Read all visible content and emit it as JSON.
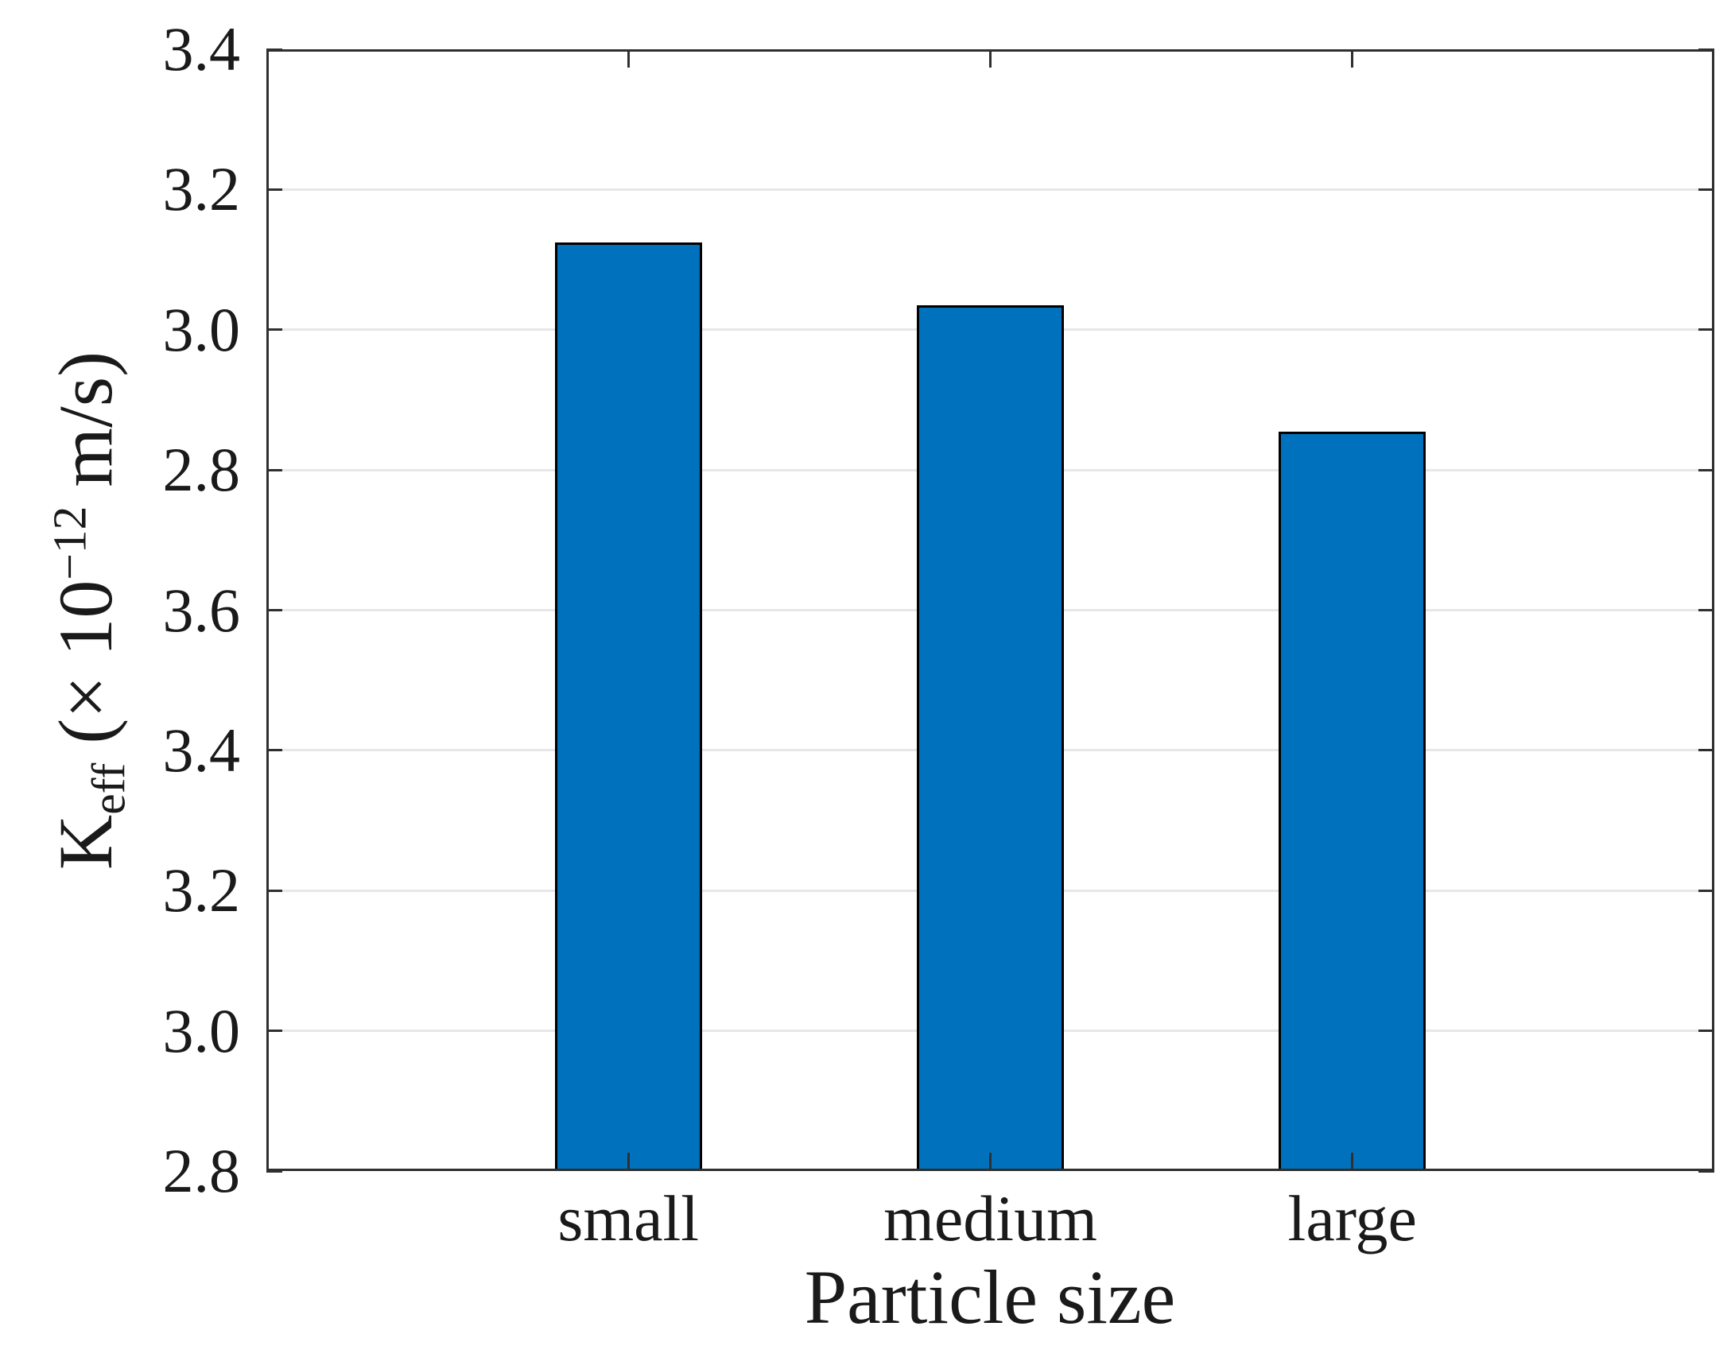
{
  "chart_data": {
    "type": "bar",
    "title": "",
    "categories": [
      "small",
      "medium",
      "large"
    ],
    "values": [
      3.125,
      3.035,
      2.855
    ],
    "xlabel": "Particle size",
    "ylabel": "K_eff (× 10^−12 m/s)",
    "ylabel_parts": {
      "base": "K",
      "sub": "eff",
      "mid": " (× 10",
      "sup": "−12",
      "end": " m/s)"
    },
    "ytick_labels_top_to_bottom": [
      "3.4",
      "3.2",
      "3.0",
      "2.8",
      "3.6",
      "3.4",
      "3.2",
      "3.0",
      "2.8"
    ],
    "axis_note": "y-axis tick labels repeat non-monotonically exactly as printed in the source figure; bar values estimated against the top 3.4–2.8 segment",
    "grid": true,
    "legend": "none",
    "bar_color": "#0072BD",
    "bar_edge_color": "#000000",
    "grid_color": "#e7e7e7",
    "axis_color": "#2f2f2f",
    "value_scale": {
      "value_at_top_tick": 3.4,
      "value_per_tick": 0.2
    }
  }
}
